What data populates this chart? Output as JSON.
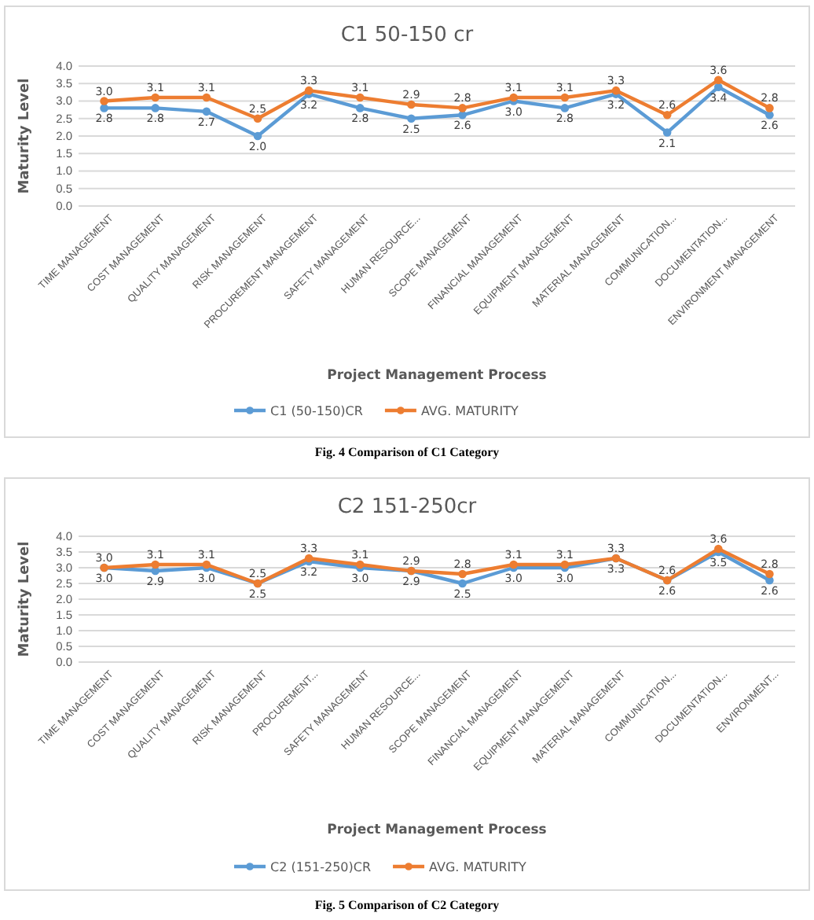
{
  "chart_data": [
    {
      "type": "line",
      "title": "C1 50-150 cr",
      "xlabel": "Project Management Process",
      "ylabel": "Maturity Level",
      "categories": [
        "TIME MANAGEMENT",
        "COST MANAGEMENT",
        "QUALITY MANAGEMENT",
        "RISK MANAGEMENT",
        "PROCUREMENT MANAGEMENT",
        "SAFETY MANAGEMENT",
        "HUMAN RESOURCE...",
        "SCOPE MANAGEMENT",
        "FINANCIAL MANAGEMENT",
        "EQUIPMENT MANAGEMENT",
        "MATERIAL MANAGEMENT",
        "COMMUNICATION...",
        "DOCUMENTATION...",
        "ENVIRONMENT MANAGEMENT"
      ],
      "series": [
        {
          "name": "C1 (50-150)CR",
          "color": "#5b9bd5",
          "values": [
            2.8,
            2.8,
            2.7,
            2.0,
            3.2,
            2.8,
            2.5,
            2.6,
            3.0,
            2.8,
            3.2,
            2.1,
            3.4,
            2.6
          ],
          "value_labels": [
            "2.8",
            "2.8",
            "2.7",
            "2.0",
            "3.2",
            "2.8",
            "2.5",
            "2.6",
            "3.0",
            "2.8",
            "3.2",
            "2.1",
            "3.4",
            "2.6"
          ]
        },
        {
          "name": "AVG. MATURITY",
          "color": "#ed7d31",
          "values": [
            3.0,
            3.1,
            3.1,
            2.5,
            3.3,
            3.1,
            2.9,
            2.8,
            3.1,
            3.1,
            3.3,
            2.6,
            3.6,
            2.8
          ],
          "value_labels": [
            "3.0",
            "3.1",
            "3.1",
            "2.5",
            "3.3",
            "3.1",
            "2.9",
            "2.8",
            "3.1",
            "3.1",
            "3.3",
            "2.6",
            "3.6",
            "2.8"
          ]
        }
      ],
      "ylim": [
        0,
        4
      ],
      "yticks": [
        {
          "value": 0,
          "label": "0.0"
        },
        {
          "value": 0.5,
          "label": "0.5"
        },
        {
          "value": 1,
          "label": "1.0"
        },
        {
          "value": 1.5,
          "label": "1.5"
        },
        {
          "value": 2,
          "label": "2.0"
        },
        {
          "value": 2.5,
          "label": "2.5"
        },
        {
          "value": 3,
          "label": "3.0"
        },
        {
          "value": 3.5,
          "label": "3.5"
        },
        {
          "value": 4,
          "label": "4.0"
        }
      ],
      "grid": "y",
      "legend": "bottom",
      "marker": "circle",
      "annotations": [
        "Fig. 4 Comparison of C1 Category"
      ]
    },
    {
      "type": "line",
      "title": "C2 151-250cr",
      "xlabel": "Project Management Process",
      "ylabel": "Maturity Level",
      "categories": [
        "TIME MANAGEMENT",
        "COST MANAGEMENT",
        "QUALITY MANAGEMENT",
        "RISK MANAGEMENT",
        "PROCUREMENT...",
        "SAFETY MANAGEMENT",
        "HUMAN RESOURCE...",
        "SCOPE MANAGEMENT",
        "FINANCIAL MANAGEMENT",
        "EQUIPMENT MANAGEMENT",
        "MATERIAL MANAGEMENT",
        "COMMUNICATION...",
        "DOCUMENTATION...",
        "ENVIRONMENT..."
      ],
      "series": [
        {
          "name": "C2 (151-250)CR",
          "color": "#5b9bd5",
          "values": [
            3.0,
            2.9,
            3.0,
            2.5,
            3.2,
            3.0,
            2.9,
            2.5,
            3.0,
            3.0,
            3.3,
            2.6,
            3.5,
            2.6
          ],
          "value_labels": [
            "3.0",
            "2.9",
            "3.0",
            "2.5",
            "3.2",
            "3.0",
            "2.9",
            "2.5",
            "3.0",
            "3.0",
            "3.3",
            "2.6",
            "3.5",
            "2.6"
          ]
        },
        {
          "name": "AVG. MATURITY",
          "color": "#ed7d31",
          "values": [
            3.0,
            3.1,
            3.1,
            2.5,
            3.3,
            3.1,
            2.9,
            2.8,
            3.1,
            3.1,
            3.3,
            2.6,
            3.6,
            2.8
          ],
          "value_labels": [
            "3.0",
            "3.1",
            "3.1",
            "2.5",
            "3.3",
            "3.1",
            "2.9",
            "2.8",
            "3.1",
            "3.1",
            "3.3",
            "2.6",
            "3.6",
            "2.8"
          ]
        }
      ],
      "ylim": [
        0,
        4
      ],
      "yticks": [
        {
          "value": 0,
          "label": "0.0"
        },
        {
          "value": 0.5,
          "label": "0.5"
        },
        {
          "value": 1,
          "label": "1.0"
        },
        {
          "value": 1.5,
          "label": "1.5"
        },
        {
          "value": 2,
          "label": "2.0"
        },
        {
          "value": 2.5,
          "label": "2.5"
        },
        {
          "value": 3,
          "label": "3.0"
        },
        {
          "value": 3.5,
          "label": "3.5"
        },
        {
          "value": 4,
          "label": "4.0"
        }
      ],
      "grid": "y",
      "legend": "bottom",
      "marker": "circle",
      "annotations": [
        "Fig. 5 Comparison of C2 Category"
      ]
    }
  ]
}
